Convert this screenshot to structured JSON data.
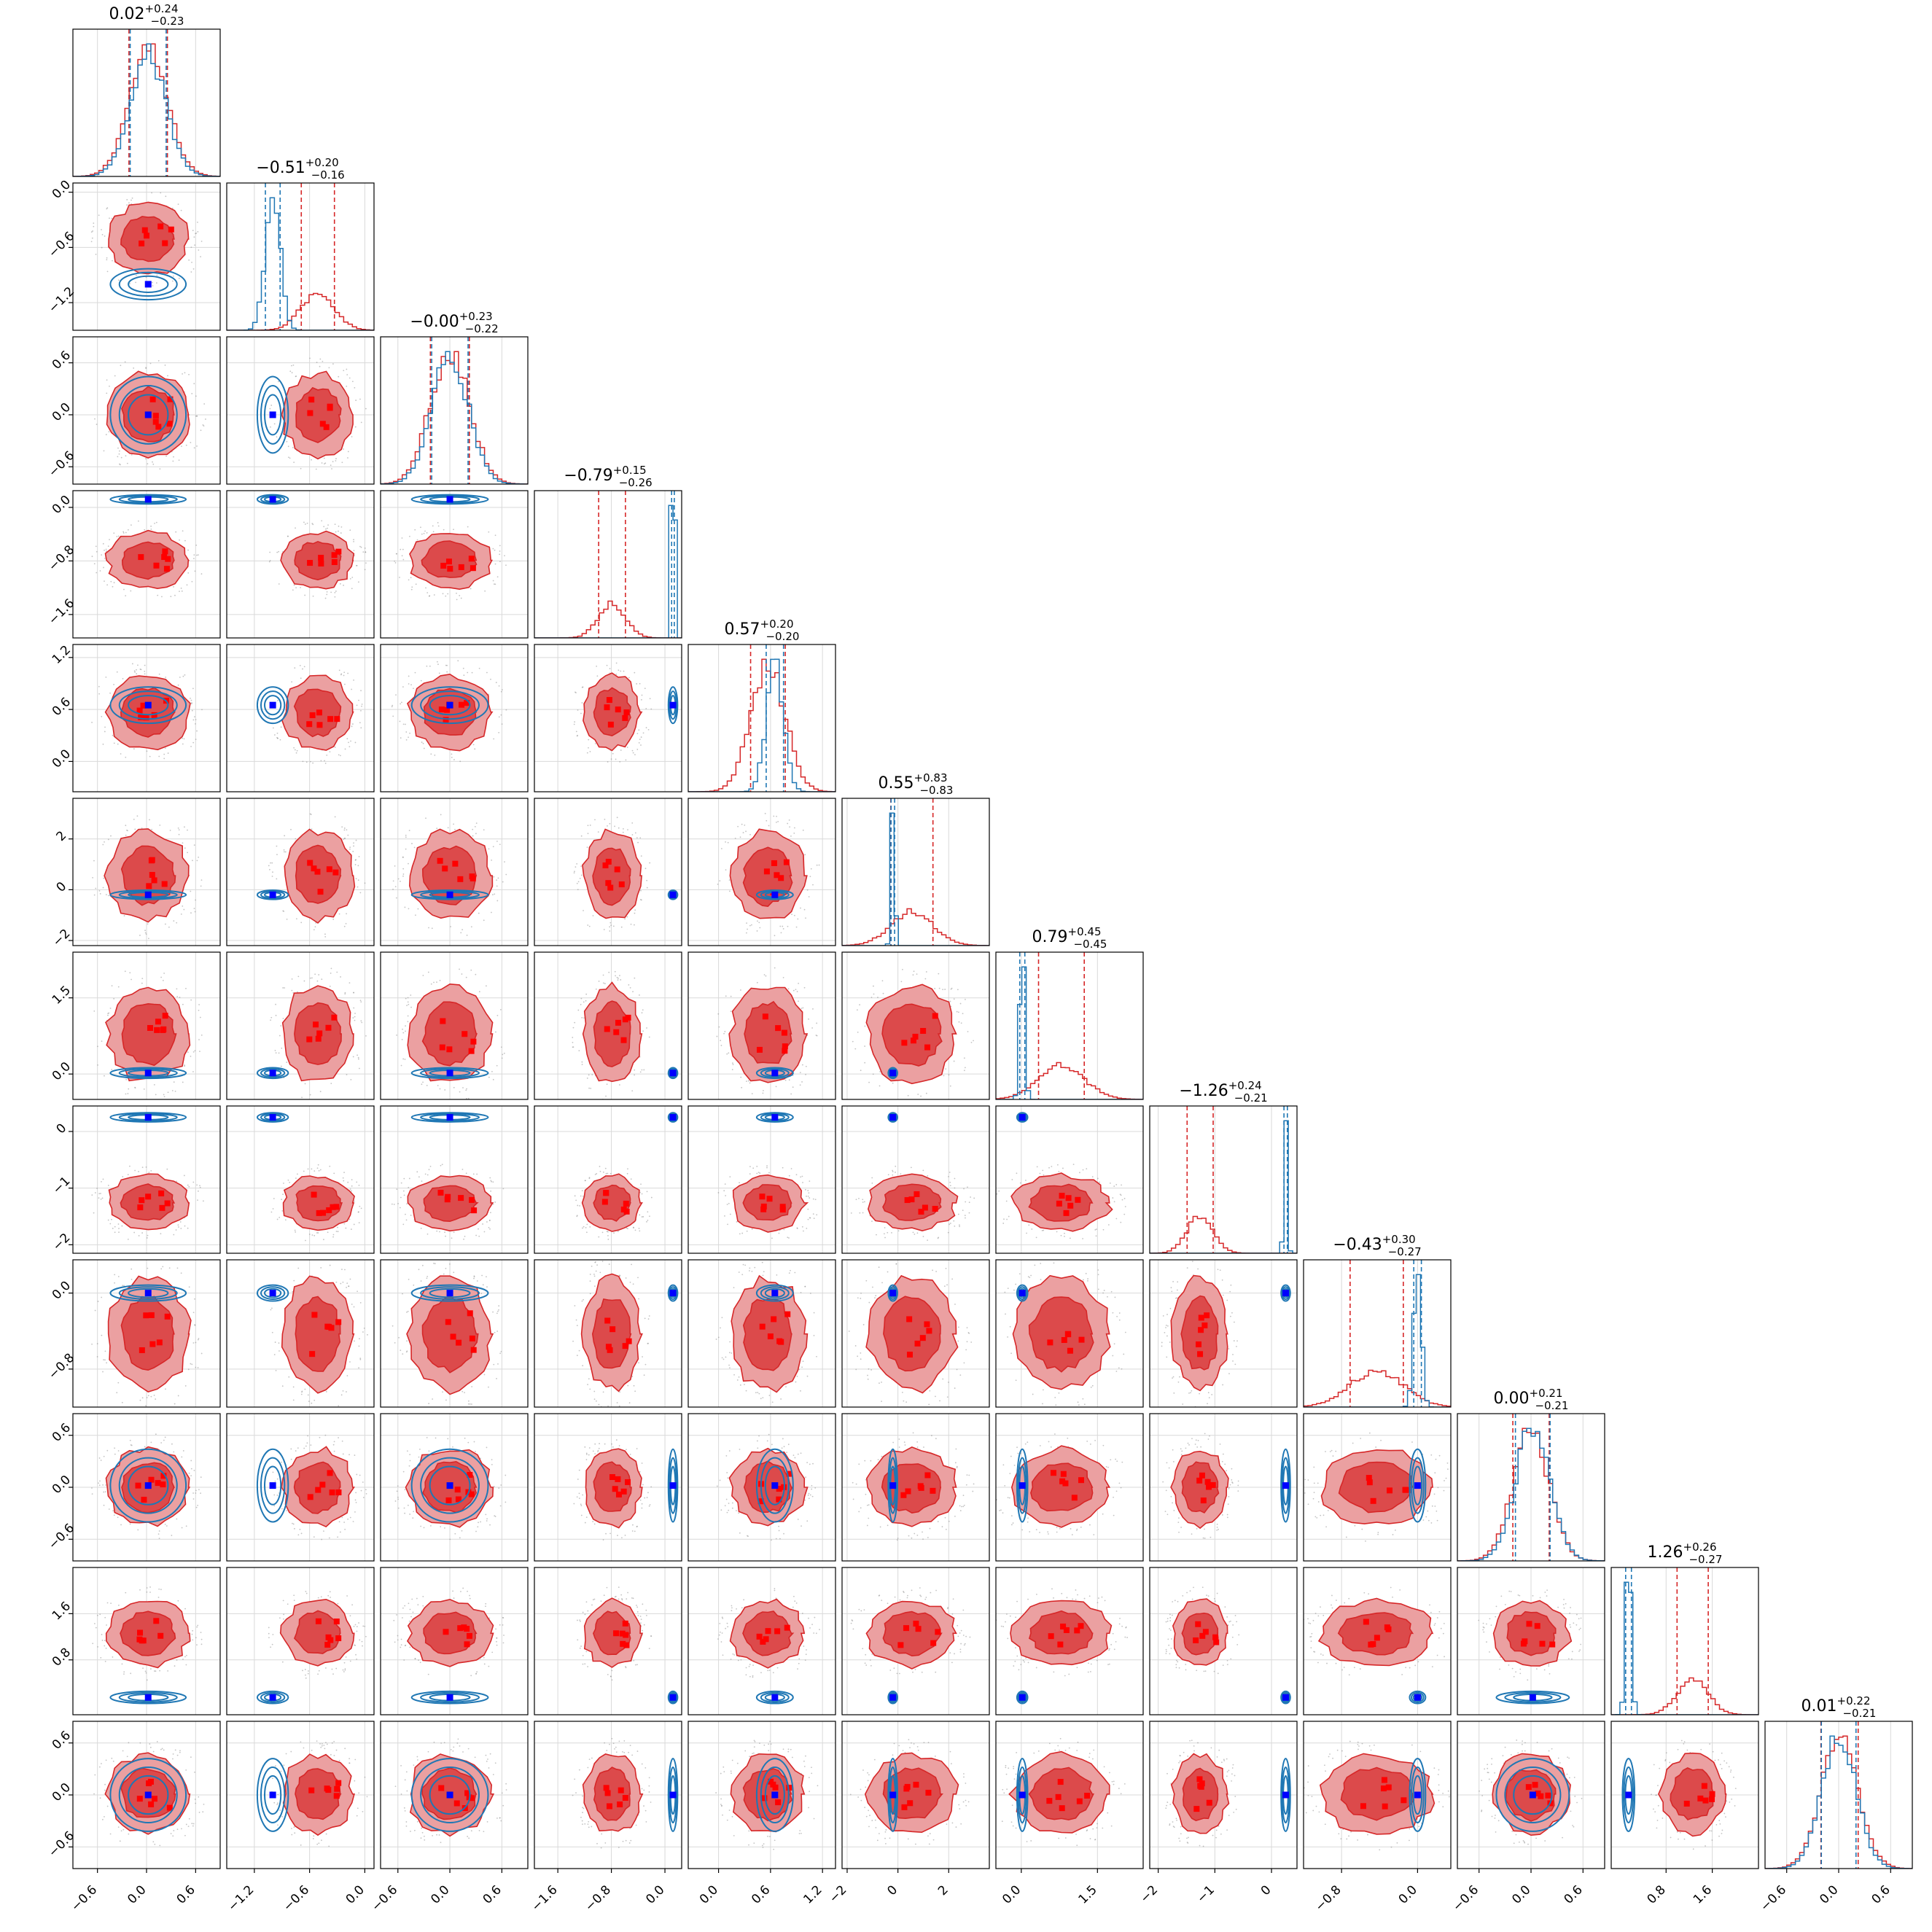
{
  "chart_data": {
    "type": "corner",
    "n_params": 12,
    "colors": {
      "red_series": "#d62728",
      "blue_series": "#1f77b4",
      "red_marker": "#ff0000",
      "blue_marker": "#0000ff"
    },
    "series": [
      {
        "name": "",
        "color": "#d62728",
        "fill": true
      },
      {
        "name": "",
        "color": "#1f77b4",
        "fill": false
      }
    ],
    "grid": true,
    "diagonal_titles": [
      {
        "median": "0.02",
        "plus": "+0.24",
        "minus": "−0.23"
      },
      {
        "median": "−0.51",
        "plus": "+0.20",
        "minus": "−0.16"
      },
      {
        "median": "−0.00",
        "plus": "+0.23",
        "minus": "−0.22"
      },
      {
        "median": "−0.79",
        "plus": "+0.15",
        "minus": "−0.26"
      },
      {
        "median": "0.57",
        "plus": "+0.20",
        "minus": "−0.20"
      },
      {
        "median": "0.55",
        "plus": "+0.83",
        "minus": "−0.83"
      },
      {
        "median": "0.79",
        "plus": "+0.45",
        "minus": "−0.45"
      },
      {
        "median": "−1.26",
        "plus": "+0.24",
        "minus": "−0.21"
      },
      {
        "median": "−0.43",
        "plus": "+0.30",
        "minus": "−0.27"
      },
      {
        "median": "0.00",
        "plus": "+0.21",
        "minus": "−0.21"
      },
      {
        "median": "1.26",
        "plus": "+0.26",
        "minus": "−0.27"
      },
      {
        "median": "0.01",
        "plus": "+0.22",
        "minus": "−0.21"
      }
    ],
    "params": [
      {
        "range": [
          -0.9,
          0.9
        ],
        "ticks": [
          -0.6,
          0.0,
          0.6
        ],
        "ticklabels": [
          "−0.6",
          "0.0",
          "0.6"
        ],
        "red": {
          "mean": 0.02,
          "sd": 0.235
        },
        "blue": {
          "mean": 0.02,
          "sd": 0.22
        },
        "truth": 0.02
      },
      {
        "range": [
          -1.5,
          0.1
        ],
        "ticks": [
          -1.2,
          -0.6,
          0.0
        ],
        "ticklabels": [
          "−1.2",
          "−0.6",
          "0.0"
        ],
        "red": {
          "mean": -0.51,
          "sd": 0.18
        },
        "blue": {
          "mean": -1.0,
          "sd": 0.08
        },
        "truth": -1.0
      },
      {
        "range": [
          -0.8,
          0.9
        ],
        "ticks": [
          -0.6,
          0.0,
          0.6
        ],
        "ticklabels": [
          "−0.6",
          "0.0",
          "0.6"
        ],
        "red": {
          "mean": 0.0,
          "sd": 0.225
        },
        "blue": {
          "mean": 0.0,
          "sd": 0.21
        },
        "truth": 0.0
      },
      {
        "range": [
          -1.95,
          0.25
        ],
        "ticks": [
          -1.6,
          -0.8,
          0.0
        ],
        "ticklabels": [
          "−1.6",
          "−0.8",
          "0.0"
        ],
        "red": {
          "mean": -0.79,
          "sd": 0.2
        },
        "blue": {
          "mean": 0.12,
          "sd": 0.02
        },
        "truth": 0.12
      },
      {
        "range": [
          -0.35,
          1.35
        ],
        "ticks": [
          0.0,
          0.6,
          1.2
        ],
        "ticklabels": [
          "0.0",
          "0.6",
          "1.2"
        ],
        "red": {
          "mean": 0.57,
          "sd": 0.2
        },
        "blue": {
          "mean": 0.65,
          "sd": 0.1
        },
        "truth": 0.65
      },
      {
        "range": [
          -2.2,
          3.6
        ],
        "ticks": [
          -2.0,
          0.0,
          2.0
        ],
        "ticklabels": [
          "−2",
          "0",
          "2"
        ],
        "red": {
          "mean": 0.55,
          "sd": 0.83
        },
        "blue": {
          "mean": -0.2,
          "sd": 0.07
        },
        "truth": -0.2
      },
      {
        "range": [
          -0.5,
          2.4
        ],
        "ticks": [
          0.0,
          1.5
        ],
        "ticklabels": [
          "0.0",
          "1.5"
        ],
        "red": {
          "mean": 0.79,
          "sd": 0.45
        },
        "blue": {
          "mean": 0.02,
          "sd": 0.05
        },
        "truth": 0.02
      },
      {
        "range": [
          -2.15,
          0.45
        ],
        "ticks": [
          -2.0,
          -1.0,
          0.0
        ],
        "ticklabels": [
          "−2",
          "−1",
          "0"
        ],
        "red": {
          "mean": -1.26,
          "sd": 0.23
        },
        "blue": {
          "mean": 0.25,
          "sd": 0.03
        },
        "truth": 0.25
      },
      {
        "range": [
          -1.2,
          0.35
        ],
        "ticks": [
          -0.8,
          0.0
        ],
        "ticklabels": [
          "−0.8",
          "0.0"
        ],
        "red": {
          "mean": -0.43,
          "sd": 0.28
        },
        "blue": {
          "mean": 0.0,
          "sd": 0.04
        },
        "truth": 0.0
      },
      {
        "range": [
          -0.85,
          0.85
        ],
        "ticks": [
          -0.6,
          0.0,
          0.6
        ],
        "ticklabels": [
          "−0.6",
          "0.0",
          "0.6"
        ],
        "red": {
          "mean": 0.0,
          "sd": 0.21
        },
        "blue": {
          "mean": 0.02,
          "sd": 0.2
        },
        "truth": 0.02
      },
      {
        "range": [
          -0.15,
          2.4
        ],
        "ticks": [
          0.8,
          1.6
        ],
        "ticklabels": [
          "0.8",
          "1.6"
        ],
        "red": {
          "mean": 1.26,
          "sd": 0.27
        },
        "blue": {
          "mean": 0.15,
          "sd": 0.05
        },
        "truth": 0.15
      },
      {
        "range": [
          -0.85,
          0.85
        ],
        "ticks": [
          -0.6,
          0.0,
          0.6
        ],
        "ticklabels": [
          "−0.6",
          "0.0",
          "0.6"
        ],
        "red": {
          "mean": 0.01,
          "sd": 0.215
        },
        "blue": {
          "mean": 0.0,
          "sd": 0.2
        },
        "truth": 0.0
      }
    ]
  }
}
